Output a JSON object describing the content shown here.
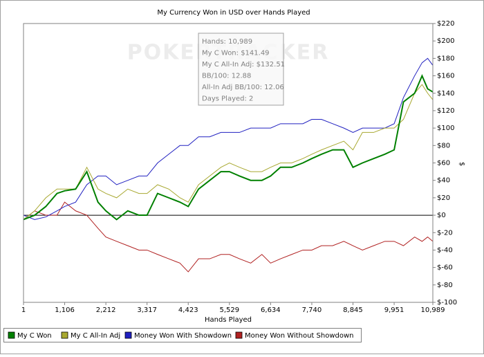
{
  "chart_data": {
    "type": "line",
    "title": "My Currency Won in USD over Hands Played",
    "x_label": "Hands Played",
    "y_label": "$",
    "watermark": "POKERTRACKER",
    "tooltip": [
      "Hands: 10,989",
      "My C Won: $141.49",
      "My C All-In Adj: $132.51",
      "BB/100: 12.88",
      "All-In Adj BB/100: 12.06",
      "Days Played: 2"
    ],
    "x": [
      1,
      300,
      600,
      900,
      1106,
      1400,
      1700,
      2000,
      2212,
      2500,
      2800,
      3100,
      3317,
      3600,
      3900,
      4200,
      4423,
      4700,
      5000,
      5300,
      5529,
      5800,
      6100,
      6400,
      6634,
      6900,
      7200,
      7500,
      7740,
      8000,
      8300,
      8600,
      8845,
      9100,
      9400,
      9700,
      9951,
      10200,
      10500,
      10700,
      10850,
      10989
    ],
    "series": [
      {
        "name": "My C Won",
        "color": "#008000",
        "values": [
          -5,
          0,
          10,
          25,
          28,
          30,
          50,
          15,
          5,
          -5,
          5,
          0,
          0,
          25,
          20,
          15,
          10,
          30,
          40,
          50,
          50,
          45,
          40,
          40,
          45,
          55,
          55,
          60,
          65,
          70,
          75,
          75,
          55,
          60,
          65,
          70,
          75,
          130,
          140,
          160,
          145,
          141.49
        ]
      },
      {
        "name": "My C All-In Adj",
        "color": "#a8a830",
        "values": [
          -5,
          5,
          20,
          30,
          30,
          30,
          55,
          30,
          25,
          20,
          30,
          25,
          25,
          35,
          30,
          20,
          15,
          35,
          45,
          55,
          60,
          55,
          50,
          50,
          55,
          60,
          60,
          65,
          70,
          75,
          80,
          85,
          75,
          95,
          95,
          100,
          100,
          110,
          140,
          150,
          140,
          132.51
        ]
      },
      {
        "name": "Money Won With Showdown",
        "color": "#2020c0",
        "values": [
          0,
          -5,
          -2,
          5,
          10,
          15,
          35,
          45,
          45,
          35,
          40,
          45,
          45,
          60,
          70,
          80,
          80,
          90,
          90,
          95,
          95,
          95,
          100,
          100,
          100,
          105,
          105,
          105,
          110,
          110,
          105,
          100,
          95,
          100,
          100,
          100,
          105,
          135,
          160,
          175,
          180,
          172
        ]
      },
      {
        "name": "Money Won Without Showdown",
        "color": "#b02020",
        "values": [
          -5,
          5,
          0,
          0,
          15,
          5,
          0,
          -15,
          -25,
          -30,
          -35,
          -40,
          -40,
          -45,
          -50,
          -55,
          -65,
          -50,
          -50,
          -45,
          -45,
          -50,
          -55,
          -45,
          -55,
          -50,
          -45,
          -40,
          -40,
          -35,
          -35,
          -30,
          -35,
          -40,
          -35,
          -30,
          -30,
          -35,
          -25,
          -30,
          -25,
          -30
        ]
      }
    ],
    "xlim": [
      1,
      10989
    ],
    "xticks": [
      1,
      {
        "value": 1106,
        "label": "1,106"
      },
      {
        "value": 2212,
        "label": "2,212"
      },
      {
        "value": 3317,
        "label": "3,317"
      },
      {
        "value": 4423,
        "label": "4,423"
      },
      {
        "value": 5529,
        "label": "5,529"
      },
      {
        "value": 6634,
        "label": "6,634"
      },
      {
        "value": 7740,
        "label": "7,740"
      },
      {
        "value": 8845,
        "label": "8,845"
      },
      {
        "value": 9951,
        "label": "9,951"
      },
      {
        "value": 10989,
        "label": "10,989"
      }
    ],
    "ylim": [
      -100,
      220
    ],
    "yticks": [
      {
        "value": -100,
        "label": "$-100"
      },
      {
        "value": -80,
        "label": "$-80"
      },
      {
        "value": -60,
        "label": "$-60"
      },
      {
        "value": -40,
        "label": "$-40"
      },
      {
        "value": -20,
        "label": "$-20"
      },
      {
        "value": 0,
        "label": "$0"
      },
      {
        "value": 20,
        "label": "$20"
      },
      {
        "value": 40,
        "label": "$40"
      },
      {
        "value": 60,
        "label": "$60"
      },
      {
        "value": 80,
        "label": "$80"
      },
      {
        "value": 100,
        "label": "$100"
      },
      {
        "value": 120,
        "label": "$120"
      },
      {
        "value": 140,
        "label": "$140"
      },
      {
        "value": 160,
        "label": "$160"
      },
      {
        "value": 180,
        "label": "$180"
      },
      {
        "value": 200,
        "label": "$200"
      },
      {
        "value": 220,
        "label": "$220"
      }
    ],
    "y_axis_side": "right",
    "zero_line": true,
    "grid": false,
    "legend": "bottom"
  }
}
